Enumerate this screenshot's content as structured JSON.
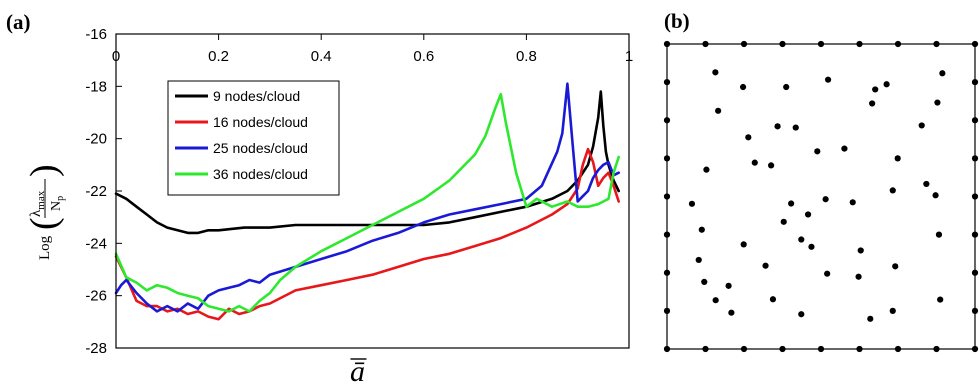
{
  "panels": {
    "a_label": "(a)",
    "b_label": "(b)"
  },
  "chart_data": [
    {
      "type": "line",
      "title": "",
      "xlabel": "ā",
      "ylabel": {
        "prefix": "Log",
        "numerator": "λ",
        "numerator_sub": "max",
        "denominator": "N",
        "denominator_sub": "p"
      },
      "xlim": [
        0,
        1
      ],
      "ylim": [
        -28,
        -16
      ],
      "x_ticks": [
        0,
        0.2,
        0.4,
        0.6,
        0.8,
        1
      ],
      "x_tick_labels": [
        "0",
        "0.2",
        "0.4",
        "0.6",
        "0.8",
        "1"
      ],
      "y_ticks": [
        -16,
        -18,
        -20,
        -22,
        -24,
        -26,
        -28
      ],
      "y_tick_labels": [
        "-16",
        "-18",
        "-20",
        "-22",
        "-24",
        "-26",
        "-28"
      ],
      "x_ticks_position": "top",
      "grid": false,
      "legend_position": "upper-left",
      "series": [
        {
          "name": "9 nodes/cloud",
          "color": "#000000",
          "x": [
            0,
            0.02,
            0.04,
            0.06,
            0.08,
            0.1,
            0.12,
            0.14,
            0.16,
            0.18,
            0.2,
            0.25,
            0.3,
            0.35,
            0.4,
            0.45,
            0.5,
            0.55,
            0.6,
            0.65,
            0.7,
            0.75,
            0.8,
            0.85,
            0.88,
            0.9,
            0.92,
            0.93,
            0.94,
            0.945,
            0.95,
            0.955,
            0.96,
            0.97,
            0.98
          ],
          "y": [
            -22.1,
            -22.3,
            -22.6,
            -22.9,
            -23.2,
            -23.4,
            -23.5,
            -23.6,
            -23.6,
            -23.5,
            -23.5,
            -23.4,
            -23.4,
            -23.3,
            -23.3,
            -23.3,
            -23.3,
            -23.3,
            -23.3,
            -23.2,
            -23.0,
            -22.8,
            -22.6,
            -22.3,
            -22.0,
            -21.6,
            -21.0,
            -20.3,
            -19.2,
            -18.2,
            -19.5,
            -20.5,
            -21.0,
            -21.6,
            -22.0
          ]
        },
        {
          "name": "16 nodes/cloud",
          "color": "#e8171b",
          "x": [
            0,
            0.02,
            0.04,
            0.06,
            0.08,
            0.1,
            0.12,
            0.14,
            0.16,
            0.18,
            0.2,
            0.22,
            0.24,
            0.26,
            0.28,
            0.3,
            0.35,
            0.4,
            0.45,
            0.5,
            0.55,
            0.6,
            0.65,
            0.7,
            0.75,
            0.8,
            0.85,
            0.88,
            0.9,
            0.91,
            0.92,
            0.93,
            0.94,
            0.95,
            0.96,
            0.97,
            0.98
          ],
          "y": [
            -24.5,
            -25.3,
            -26.2,
            -26.4,
            -26.4,
            -26.6,
            -26.5,
            -26.7,
            -26.6,
            -26.8,
            -26.9,
            -26.5,
            -26.7,
            -26.6,
            -26.4,
            -26.3,
            -25.8,
            -25.6,
            -25.4,
            -25.2,
            -24.9,
            -24.6,
            -24.4,
            -24.1,
            -23.8,
            -23.4,
            -22.9,
            -22.5,
            -21.9,
            -21.0,
            -20.4,
            -20.9,
            -21.8,
            -21.5,
            -21.3,
            -21.8,
            -22.4
          ]
        },
        {
          "name": "25 nodes/cloud",
          "color": "#1a1ad6",
          "x": [
            0,
            0.01,
            0.02,
            0.04,
            0.06,
            0.08,
            0.1,
            0.12,
            0.14,
            0.16,
            0.18,
            0.2,
            0.22,
            0.24,
            0.26,
            0.28,
            0.3,
            0.35,
            0.4,
            0.45,
            0.5,
            0.55,
            0.6,
            0.65,
            0.7,
            0.75,
            0.8,
            0.83,
            0.86,
            0.87,
            0.88,
            0.89,
            0.9,
            0.91,
            0.92,
            0.93,
            0.94,
            0.95,
            0.96,
            0.97,
            0.98
          ],
          "y": [
            -25.9,
            -25.6,
            -25.4,
            -25.9,
            -26.3,
            -26.6,
            -26.4,
            -26.6,
            -26.3,
            -26.5,
            -26.0,
            -25.8,
            -25.7,
            -25.6,
            -25.4,
            -25.5,
            -25.2,
            -24.9,
            -24.6,
            -24.3,
            -23.9,
            -23.6,
            -23.2,
            -22.9,
            -22.7,
            -22.5,
            -22.3,
            -21.8,
            -20.5,
            -19.8,
            -17.9,
            -20.2,
            -22.4,
            -22.2,
            -22.0,
            -21.5,
            -21.2,
            -21.0,
            -20.9,
            -21.4,
            -21.3
          ]
        },
        {
          "name": "36 nodes/cloud",
          "color": "#2ee82e",
          "x": [
            0,
            0.02,
            0.04,
            0.06,
            0.08,
            0.1,
            0.12,
            0.14,
            0.16,
            0.18,
            0.2,
            0.22,
            0.24,
            0.26,
            0.28,
            0.3,
            0.32,
            0.35,
            0.4,
            0.45,
            0.5,
            0.55,
            0.6,
            0.65,
            0.7,
            0.72,
            0.74,
            0.75,
            0.76,
            0.78,
            0.8,
            0.82,
            0.85,
            0.88,
            0.9,
            0.92,
            0.94,
            0.96,
            0.97,
            0.98
          ],
          "y": [
            -24.4,
            -25.3,
            -25.5,
            -25.8,
            -25.6,
            -25.7,
            -25.9,
            -26.0,
            -26.1,
            -26.4,
            -26.5,
            -26.6,
            -26.4,
            -26.6,
            -26.2,
            -25.9,
            -25.4,
            -24.9,
            -24.3,
            -23.8,
            -23.3,
            -22.8,
            -22.3,
            -21.6,
            -20.6,
            -19.9,
            -18.8,
            -18.3,
            -19.4,
            -21.3,
            -22.6,
            -22.3,
            -22.6,
            -22.4,
            -22.6,
            -22.6,
            -22.5,
            -22.3,
            -21.3,
            -20.7
          ]
        }
      ]
    },
    {
      "type": "scatter",
      "title": "",
      "frame": true,
      "xlim": [
        0,
        1
      ],
      "ylim": [
        0,
        1
      ],
      "points": [
        [
          0,
          0
        ],
        [
          0.125,
          0
        ],
        [
          0.25,
          0
        ],
        [
          0.375,
          0
        ],
        [
          0.5,
          0
        ],
        [
          0.625,
          0
        ],
        [
          0.75,
          0
        ],
        [
          0.875,
          0
        ],
        [
          1,
          0
        ],
        [
          0,
          1
        ],
        [
          0.125,
          1
        ],
        [
          0.25,
          1
        ],
        [
          0.375,
          1
        ],
        [
          0.5,
          1
        ],
        [
          0.625,
          1
        ],
        [
          0.75,
          1
        ],
        [
          0.875,
          1
        ],
        [
          1,
          1
        ],
        [
          0,
          0.125
        ],
        [
          0,
          0.25
        ],
        [
          0,
          0.375
        ],
        [
          0,
          0.5
        ],
        [
          0,
          0.625
        ],
        [
          0,
          0.75
        ],
        [
          0,
          0.875
        ],
        [
          1,
          0.125
        ],
        [
          1,
          0.25
        ],
        [
          1,
          0.375
        ],
        [
          1,
          0.5
        ],
        [
          1,
          0.625
        ],
        [
          1,
          0.75
        ],
        [
          1,
          0.875
        ],
        [
          0.157,
          0.907
        ],
        [
          0.247,
          0.859
        ],
        [
          0.166,
          0.781
        ],
        [
          0.264,
          0.694
        ],
        [
          0.285,
          0.611
        ],
        [
          0.338,
          0.602
        ],
        [
          0.128,
          0.588
        ],
        [
          0.081,
          0.476
        ],
        [
          0.387,
          0.859
        ],
        [
          0.359,
          0.73
        ],
        [
          0.418,
          0.726
        ],
        [
          0.523,
          0.883
        ],
        [
          0.488,
          0.648
        ],
        [
          0.576,
          0.657
        ],
        [
          0.713,
          0.868
        ],
        [
          0.676,
          0.851
        ],
        [
          0.666,
          0.805
        ],
        [
          0.827,
          0.733
        ],
        [
          0.749,
          0.625
        ],
        [
          0.894,
          0.904
        ],
        [
          0.878,
          0.808
        ],
        [
          0.842,
          0.541
        ],
        [
          0.872,
          0.504
        ],
        [
          0.733,
          0.52
        ],
        [
          0.603,
          0.481
        ],
        [
          0.515,
          0.491
        ],
        [
          0.458,
          0.441
        ],
        [
          0.403,
          0.477
        ],
        [
          0.379,
          0.417
        ],
        [
          0.113,
          0.391
        ],
        [
          0.121,
          0.22
        ],
        [
          0.103,
          0.292
        ],
        [
          0.249,
          0.343
        ],
        [
          0.32,
          0.273
        ],
        [
          0.344,
          0.163
        ],
        [
          0.436,
          0.359
        ],
        [
          0.469,
          0.335
        ],
        [
          0.629,
          0.323
        ],
        [
          0.622,
          0.237
        ],
        [
          0.52,
          0.247
        ],
        [
          0.741,
          0.271
        ],
        [
          0.733,
          0.125
        ],
        [
          0.66,
          0.099
        ],
        [
          0.887,
          0.162
        ],
        [
          0.883,
          0.375
        ],
        [
          0.209,
          0.119
        ],
        [
          0.158,
          0.16
        ],
        [
          0.2,
          0.207
        ],
        [
          0.436,
          0.114
        ]
      ]
    }
  ]
}
